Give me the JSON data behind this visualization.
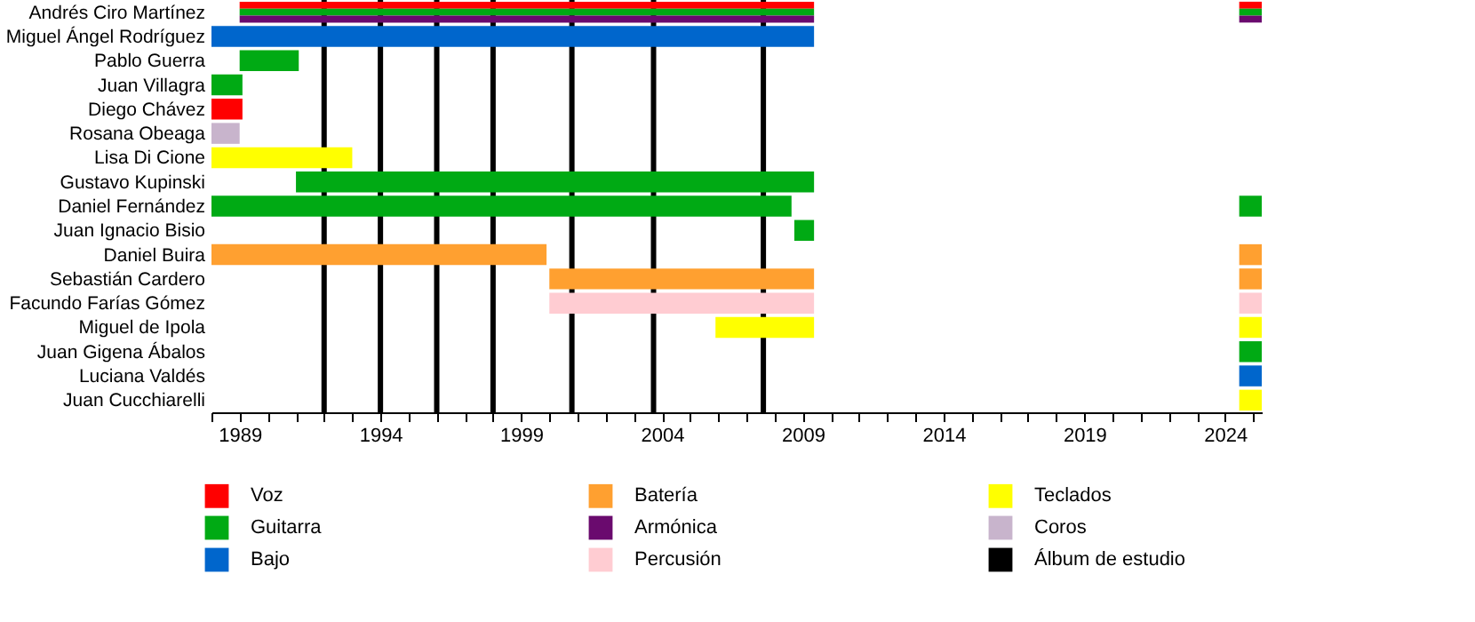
{
  "chart_data": {
    "type": "bar",
    "orientation": "horizontal",
    "categories": [
      "Andrés Ciro Martínez",
      "Miguel Ángel Rodríguez",
      "Pablo Guerra",
      "Juan Villagra",
      "Diego Chávez",
      "Rosana Obeaga",
      "Lisa Di Cione",
      "Gustavo Kupinski",
      "Daniel Fernández",
      "Juan Ignacio Bisio",
      "Daniel Buira",
      "Sebastián Cardero",
      "Facundo Farías Gómez",
      "Miguel de Ipola",
      "Juan Gigena Ábalos",
      "Luciana Valdés",
      "Juan Cucchiarelli"
    ],
    "series": [
      {
        "name": "Voz",
        "color": "#ff0000",
        "values": [
          20.4,
          null,
          null,
          null,
          1.1,
          null,
          null,
          null,
          null,
          null,
          null,
          null,
          null,
          null,
          null,
          null,
          null
        ],
        "base": [
          1989,
          null,
          null,
          null,
          1988,
          null,
          null,
          null,
          null,
          null,
          null,
          null,
          null,
          null,
          null,
          null,
          null
        ]
      },
      {
        "name": "Guitarra",
        "color": "#00aa14",
        "values": [
          20.4,
          null,
          2.1,
          1.1,
          null,
          null,
          null,
          18.4,
          20.6,
          0.7,
          null,
          null,
          null,
          null,
          null,
          null,
          null
        ],
        "base": [
          1989,
          null,
          1989,
          1988,
          null,
          null,
          null,
          1991,
          1988,
          2008.7,
          null,
          null,
          null,
          null,
          null,
          null,
          null
        ]
      },
      {
        "name": "Bajo",
        "color": "#0066cc",
        "values": [
          null,
          21.4,
          null,
          null,
          null,
          null,
          null,
          null,
          null,
          null,
          null,
          null,
          null,
          null,
          null,
          null,
          null
        ],
        "base": [
          null,
          1988,
          null,
          null,
          null,
          null,
          null,
          null,
          null,
          null,
          null,
          null,
          null,
          null,
          null,
          null,
          null
        ]
      },
      {
        "name": "Batería",
        "color": "#ffa030",
        "values": [
          null,
          null,
          null,
          null,
          null,
          null,
          null,
          null,
          null,
          null,
          11.9,
          9.4,
          null,
          null,
          null,
          null,
          null
        ],
        "base": [
          null,
          null,
          null,
          null,
          null,
          null,
          null,
          null,
          null,
          null,
          1988,
          2000,
          null,
          null,
          null,
          null,
          null
        ]
      },
      {
        "name": "Armónica",
        "color": "#6a0a6e",
        "values": [
          20.4,
          null,
          null,
          null,
          null,
          null,
          null,
          null,
          null,
          null,
          null,
          null,
          null,
          null,
          null,
          null,
          null
        ],
        "base": [
          1989,
          null,
          null,
          null,
          null,
          null,
          null,
          null,
          null,
          null,
          null,
          null,
          null,
          null,
          null,
          null,
          null
        ]
      },
      {
        "name": "Percusión",
        "color": "#ffccd2",
        "values": [
          null,
          null,
          null,
          null,
          null,
          null,
          null,
          null,
          null,
          null,
          null,
          null,
          9.4,
          null,
          null,
          null,
          null
        ],
        "base": [
          null,
          null,
          null,
          null,
          null,
          null,
          null,
          null,
          null,
          null,
          null,
          null,
          2000,
          null,
          null,
          null,
          null
        ]
      },
      {
        "name": "Teclados",
        "color": "#ffff00",
        "values": [
          null,
          null,
          null,
          null,
          null,
          null,
          5.0,
          null,
          null,
          null,
          null,
          null,
          null,
          3.5,
          null,
          null,
          null
        ],
        "base": [
          null,
          null,
          null,
          null,
          null,
          null,
          1988,
          null,
          null,
          null,
          null,
          null,
          null,
          2005.9,
          null,
          null,
          null
        ]
      },
      {
        "name": "Coros",
        "color": "#c8b4cc",
        "values": [
          null,
          null,
          null,
          null,
          null,
          1.0,
          null,
          null,
          null,
          null,
          null,
          null,
          null,
          null,
          null,
          null,
          null
        ],
        "base": [
          null,
          null,
          null,
          null,
          null,
          1988,
          null,
          null,
          null,
          null,
          null,
          null,
          null,
          null,
          null,
          null,
          null
        ]
      },
      {
        "color": "#ff0000",
        "values": [
          0.8,
          null,
          null,
          null,
          null,
          null,
          null,
          null,
          null,
          null,
          null,
          null,
          null,
          null,
          null,
          null,
          null
        ],
        "base": [
          2024.5,
          null,
          null,
          null,
          null,
          null,
          null,
          null,
          null,
          null,
          null,
          null,
          null,
          null,
          null,
          null,
          null
        ]
      },
      {
        "color": "#00aa14",
        "values": [
          0.8,
          null,
          null,
          null,
          null,
          null,
          null,
          null,
          0.8,
          null,
          null,
          null,
          null,
          null,
          0.8,
          null,
          null
        ],
        "base": [
          2024.5,
          null,
          null,
          null,
          null,
          null,
          null,
          null,
          2024.5,
          null,
          null,
          null,
          null,
          null,
          2024.5,
          null,
          null
        ]
      },
      {
        "color": "#0066cc",
        "values": [
          null,
          null,
          null,
          null,
          null,
          null,
          null,
          null,
          null,
          null,
          null,
          null,
          null,
          null,
          null,
          0.8,
          null
        ],
        "base": [
          null,
          null,
          null,
          null,
          null,
          null,
          null,
          null,
          null,
          null,
          null,
          null,
          null,
          null,
          null,
          2024.5,
          null
        ]
      },
      {
        "color": "#ffa030",
        "values": [
          null,
          null,
          null,
          null,
          null,
          null,
          null,
          null,
          null,
          null,
          0.8,
          0.8,
          null,
          null,
          null,
          null,
          null
        ],
        "base": [
          null,
          null,
          null,
          null,
          null,
          null,
          null,
          null,
          null,
          null,
          2024.5,
          2024.5,
          null,
          null,
          null,
          null,
          null
        ]
      },
      {
        "color": "#6a0a6e",
        "values": [
          0.8,
          null,
          null,
          null,
          null,
          null,
          null,
          null,
          null,
          null,
          null,
          null,
          null,
          null,
          null,
          null,
          null
        ],
        "base": [
          2024.5,
          null,
          null,
          null,
          null,
          null,
          null,
          null,
          null,
          null,
          null,
          null,
          null,
          null,
          null,
          null,
          null
        ]
      },
      {
        "color": "#ffccd2",
        "values": [
          null,
          null,
          null,
          null,
          null,
          null,
          null,
          null,
          null,
          null,
          null,
          null,
          0.8,
          null,
          null,
          null,
          null
        ],
        "base": [
          null,
          null,
          null,
          null,
          null,
          null,
          null,
          null,
          null,
          null,
          null,
          null,
          2024.5,
          null,
          null,
          null,
          null
        ]
      },
      {
        "color": "#ffff00",
        "values": [
          null,
          null,
          null,
          null,
          null,
          null,
          null,
          null,
          null,
          null,
          null,
          null,
          null,
          0.8,
          null,
          null,
          0.8
        ],
        "base": [
          null,
          null,
          null,
          null,
          null,
          null,
          null,
          null,
          null,
          null,
          null,
          null,
          null,
          2024.5,
          null,
          null,
          2024.5
        ]
      }
    ],
    "xlim": [
      1988,
      2025.3
    ],
    "xticks": [
      {
        "value": 1988,
        "label": null
      },
      1989,
      {
        "value": 1990,
        "label": null
      },
      {
        "value": 1991,
        "label": null
      },
      {
        "value": 1992,
        "label": null
      },
      {
        "value": 1993,
        "label": null
      },
      1994,
      {
        "value": 1995,
        "label": null
      },
      {
        "value": 1996,
        "label": null
      },
      {
        "value": 1997,
        "label": null
      },
      {
        "value": 1998,
        "label": null
      },
      1999,
      {
        "value": 2000,
        "label": null
      },
      {
        "value": 2001,
        "label": null
      },
      {
        "value": 2002,
        "label": null
      },
      {
        "value": 2003,
        "label": null
      },
      2004,
      {
        "value": 2005,
        "label": null
      },
      {
        "value": 2006,
        "label": null
      },
      {
        "value": 2007,
        "label": null
      },
      {
        "value": 2008,
        "label": null
      },
      2009,
      {
        "value": 2010,
        "label": null
      },
      {
        "value": 2011,
        "label": null
      },
      {
        "value": 2012,
        "label": null
      },
      {
        "value": 2013,
        "label": null
      },
      2014,
      {
        "value": 2015,
        "label": null
      },
      {
        "value": 2016,
        "label": null
      },
      {
        "value": 2017,
        "label": null
      },
      {
        "value": 2018,
        "label": null
      },
      2019,
      {
        "value": 2020,
        "label": null
      },
      {
        "value": 2021,
        "label": null
      },
      {
        "value": 2022,
        "label": null
      },
      {
        "value": 2023,
        "label": null
      },
      2024,
      {
        "value": 2025,
        "label": null
      }
    ],
    "ref_lines": [
      {
        "axis": "x",
        "value": 1992.0,
        "label": "Álbum de estudio",
        "color": "#000000"
      },
      {
        "axis": "x",
        "value": 1994.0,
        "color": "#000000"
      },
      {
        "axis": "x",
        "value": 1996.0,
        "color": "#000000"
      },
      {
        "axis": "x",
        "value": 1998.0,
        "color": "#000000"
      },
      {
        "axis": "x",
        "value": 2000.8,
        "color": "#000000"
      },
      {
        "axis": "x",
        "value": 2003.7,
        "color": "#000000"
      },
      {
        "axis": "x",
        "value": 2007.6,
        "color": "#000000"
      }
    ],
    "grid": false,
    "legend": "bottom"
  }
}
